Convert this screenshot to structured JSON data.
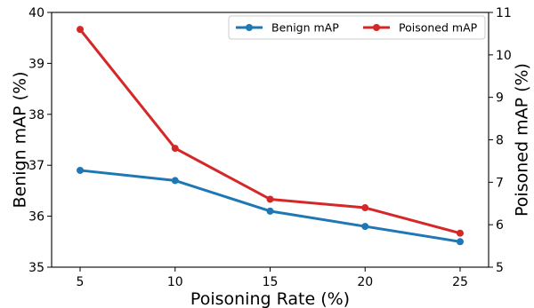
{
  "chart_data": {
    "type": "line",
    "title": "",
    "x": [
      5,
      10,
      15,
      20,
      25
    ],
    "xlabel": "Poisoning Rate (%)",
    "ylabel_left": "Benign mAP (%)",
    "ylabel_right": "Poisoned mAP (%)",
    "xlim": [
      3.5,
      26.5
    ],
    "ylim_left": [
      35,
      40
    ],
    "ylim_right": [
      5,
      11
    ],
    "x_ticks": [
      5,
      10,
      15,
      20,
      25
    ],
    "y_ticks_left": [
      35,
      36,
      37,
      38,
      39,
      40
    ],
    "y_ticks_right": [
      5,
      6,
      7,
      8,
      9,
      10,
      11
    ],
    "grid": false,
    "legend_position": "top-right",
    "series": [
      {
        "name": "Benign mAP",
        "axis": "left",
        "color": "#1f77b4",
        "values": [
          36.9,
          36.7,
          36.1,
          35.8,
          35.5
        ]
      },
      {
        "name": "Poisoned mAP",
        "axis": "right",
        "color": "#d62728",
        "values": [
          10.6,
          7.8,
          6.6,
          6.4,
          5.8
        ]
      }
    ]
  }
}
